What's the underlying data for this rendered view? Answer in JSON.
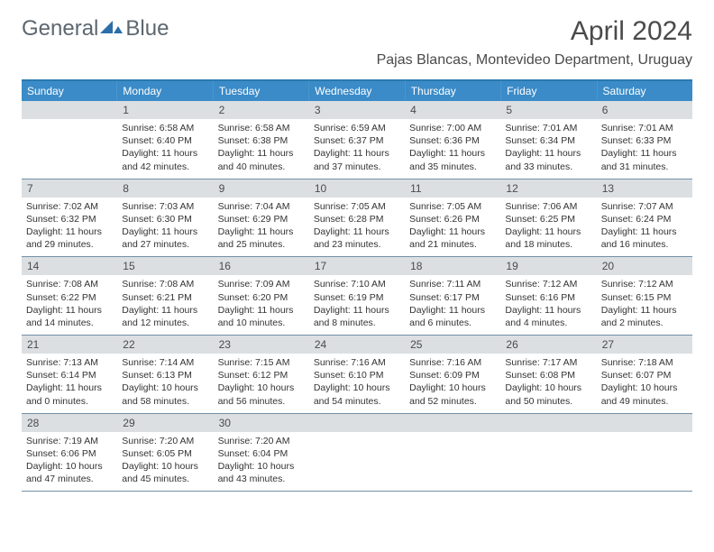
{
  "logo": {
    "text1": "General",
    "text2": "Blue"
  },
  "title": "April 2024",
  "location": "Pajas Blancas, Montevideo Department, Uruguay",
  "colors": {
    "header_bg": "#3a8bc8",
    "header_border_top": "#2a7ab0",
    "daynum_bg": "#dcdfe2",
    "row_divider": "#7090a8",
    "text": "#333333",
    "logo_blue": "#2b6ea8"
  },
  "day_headers": [
    "Sunday",
    "Monday",
    "Tuesday",
    "Wednesday",
    "Thursday",
    "Friday",
    "Saturday"
  ],
  "weeks": [
    {
      "nums": [
        "",
        "1",
        "2",
        "3",
        "4",
        "5",
        "6"
      ],
      "cells": [
        {
          "sunrise": "",
          "sunset": "",
          "daylight": ""
        },
        {
          "sunrise": "Sunrise: 6:58 AM",
          "sunset": "Sunset: 6:40 PM",
          "daylight": "Daylight: 11 hours and 42 minutes."
        },
        {
          "sunrise": "Sunrise: 6:58 AM",
          "sunset": "Sunset: 6:38 PM",
          "daylight": "Daylight: 11 hours and 40 minutes."
        },
        {
          "sunrise": "Sunrise: 6:59 AM",
          "sunset": "Sunset: 6:37 PM",
          "daylight": "Daylight: 11 hours and 37 minutes."
        },
        {
          "sunrise": "Sunrise: 7:00 AM",
          "sunset": "Sunset: 6:36 PM",
          "daylight": "Daylight: 11 hours and 35 minutes."
        },
        {
          "sunrise": "Sunrise: 7:01 AM",
          "sunset": "Sunset: 6:34 PM",
          "daylight": "Daylight: 11 hours and 33 minutes."
        },
        {
          "sunrise": "Sunrise: 7:01 AM",
          "sunset": "Sunset: 6:33 PM",
          "daylight": "Daylight: 11 hours and 31 minutes."
        }
      ]
    },
    {
      "nums": [
        "7",
        "8",
        "9",
        "10",
        "11",
        "12",
        "13"
      ],
      "cells": [
        {
          "sunrise": "Sunrise: 7:02 AM",
          "sunset": "Sunset: 6:32 PM",
          "daylight": "Daylight: 11 hours and 29 minutes."
        },
        {
          "sunrise": "Sunrise: 7:03 AM",
          "sunset": "Sunset: 6:30 PM",
          "daylight": "Daylight: 11 hours and 27 minutes."
        },
        {
          "sunrise": "Sunrise: 7:04 AM",
          "sunset": "Sunset: 6:29 PM",
          "daylight": "Daylight: 11 hours and 25 minutes."
        },
        {
          "sunrise": "Sunrise: 7:05 AM",
          "sunset": "Sunset: 6:28 PM",
          "daylight": "Daylight: 11 hours and 23 minutes."
        },
        {
          "sunrise": "Sunrise: 7:05 AM",
          "sunset": "Sunset: 6:26 PM",
          "daylight": "Daylight: 11 hours and 21 minutes."
        },
        {
          "sunrise": "Sunrise: 7:06 AM",
          "sunset": "Sunset: 6:25 PM",
          "daylight": "Daylight: 11 hours and 18 minutes."
        },
        {
          "sunrise": "Sunrise: 7:07 AM",
          "sunset": "Sunset: 6:24 PM",
          "daylight": "Daylight: 11 hours and 16 minutes."
        }
      ]
    },
    {
      "nums": [
        "14",
        "15",
        "16",
        "17",
        "18",
        "19",
        "20"
      ],
      "cells": [
        {
          "sunrise": "Sunrise: 7:08 AM",
          "sunset": "Sunset: 6:22 PM",
          "daylight": "Daylight: 11 hours and 14 minutes."
        },
        {
          "sunrise": "Sunrise: 7:08 AM",
          "sunset": "Sunset: 6:21 PM",
          "daylight": "Daylight: 11 hours and 12 minutes."
        },
        {
          "sunrise": "Sunrise: 7:09 AM",
          "sunset": "Sunset: 6:20 PM",
          "daylight": "Daylight: 11 hours and 10 minutes."
        },
        {
          "sunrise": "Sunrise: 7:10 AM",
          "sunset": "Sunset: 6:19 PM",
          "daylight": "Daylight: 11 hours and 8 minutes."
        },
        {
          "sunrise": "Sunrise: 7:11 AM",
          "sunset": "Sunset: 6:17 PM",
          "daylight": "Daylight: 11 hours and 6 minutes."
        },
        {
          "sunrise": "Sunrise: 7:12 AM",
          "sunset": "Sunset: 6:16 PM",
          "daylight": "Daylight: 11 hours and 4 minutes."
        },
        {
          "sunrise": "Sunrise: 7:12 AM",
          "sunset": "Sunset: 6:15 PM",
          "daylight": "Daylight: 11 hours and 2 minutes."
        }
      ]
    },
    {
      "nums": [
        "21",
        "22",
        "23",
        "24",
        "25",
        "26",
        "27"
      ],
      "cells": [
        {
          "sunrise": "Sunrise: 7:13 AM",
          "sunset": "Sunset: 6:14 PM",
          "daylight": "Daylight: 11 hours and 0 minutes."
        },
        {
          "sunrise": "Sunrise: 7:14 AM",
          "sunset": "Sunset: 6:13 PM",
          "daylight": "Daylight: 10 hours and 58 minutes."
        },
        {
          "sunrise": "Sunrise: 7:15 AM",
          "sunset": "Sunset: 6:12 PM",
          "daylight": "Daylight: 10 hours and 56 minutes."
        },
        {
          "sunrise": "Sunrise: 7:16 AM",
          "sunset": "Sunset: 6:10 PM",
          "daylight": "Daylight: 10 hours and 54 minutes."
        },
        {
          "sunrise": "Sunrise: 7:16 AM",
          "sunset": "Sunset: 6:09 PM",
          "daylight": "Daylight: 10 hours and 52 minutes."
        },
        {
          "sunrise": "Sunrise: 7:17 AM",
          "sunset": "Sunset: 6:08 PM",
          "daylight": "Daylight: 10 hours and 50 minutes."
        },
        {
          "sunrise": "Sunrise: 7:18 AM",
          "sunset": "Sunset: 6:07 PM",
          "daylight": "Daylight: 10 hours and 49 minutes."
        }
      ]
    },
    {
      "nums": [
        "28",
        "29",
        "30",
        "",
        "",
        "",
        ""
      ],
      "cells": [
        {
          "sunrise": "Sunrise: 7:19 AM",
          "sunset": "Sunset: 6:06 PM",
          "daylight": "Daylight: 10 hours and 47 minutes."
        },
        {
          "sunrise": "Sunrise: 7:20 AM",
          "sunset": "Sunset: 6:05 PM",
          "daylight": "Daylight: 10 hours and 45 minutes."
        },
        {
          "sunrise": "Sunrise: 7:20 AM",
          "sunset": "Sunset: 6:04 PM",
          "daylight": "Daylight: 10 hours and 43 minutes."
        },
        {
          "sunrise": "",
          "sunset": "",
          "daylight": ""
        },
        {
          "sunrise": "",
          "sunset": "",
          "daylight": ""
        },
        {
          "sunrise": "",
          "sunset": "",
          "daylight": ""
        },
        {
          "sunrise": "",
          "sunset": "",
          "daylight": ""
        }
      ]
    }
  ]
}
